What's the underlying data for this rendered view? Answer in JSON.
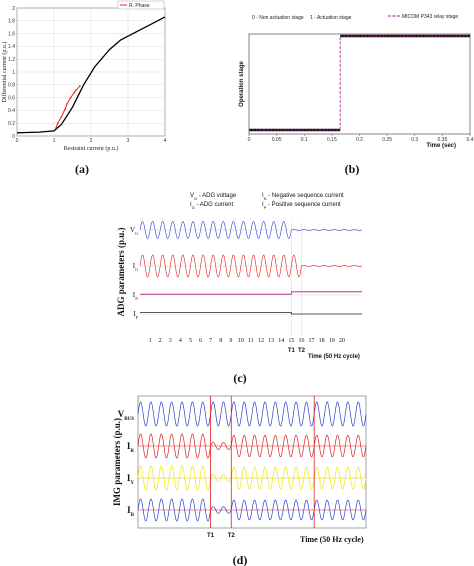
{
  "chart_data": [
    {
      "id": "a",
      "caption": "(a)",
      "type": "line",
      "xlabel": "Restraint current (p.u.)",
      "ylabel": "Differential current (p.u.)",
      "x_ticks": [
        "0",
        "1",
        "2",
        "3",
        "4"
      ],
      "y_ticks": [
        "0",
        "0.2",
        "0.4",
        "0.6",
        "0.8",
        "1",
        "1.2",
        "1.4",
        "1.6",
        "1.8",
        "2"
      ],
      "xlim": [
        0,
        4
      ],
      "ylim": [
        0,
        2.0
      ],
      "grid": true,
      "legend_position": "top-right",
      "legend_label": "R. Phase",
      "series": [
        {
          "role": "characteristic",
          "color": "#000000",
          "x": [
            0,
            0.6,
            1.0,
            1.2,
            1.5,
            1.8,
            2.1,
            2.5,
            2.8,
            3.2,
            3.6,
            4.0
          ],
          "y": [
            0.05,
            0.06,
            0.08,
            0.18,
            0.45,
            0.8,
            1.08,
            1.35,
            1.5,
            1.62,
            1.74,
            1.86
          ]
        },
        {
          "name": "R. Phase",
          "color": "#e8231c",
          "x": [
            1.05,
            1.1,
            1.2,
            1.3,
            1.35,
            1.45,
            1.55,
            1.6,
            1.7
          ],
          "y": [
            0.12,
            0.2,
            0.3,
            0.42,
            0.5,
            0.6,
            0.68,
            0.72,
            0.78
          ]
        }
      ]
    },
    {
      "id": "b",
      "caption": "(b)",
      "type": "line",
      "xlabel": "Time (sec)",
      "ylabel": "Operation stage",
      "x_ticks": [
        "0",
        "0.05",
        "0.1",
        "0.15",
        "0.2",
        "0.25",
        "0.3",
        "0.35",
        "0.4"
      ],
      "xlim": [
        0,
        0.4
      ],
      "ylim": [
        0,
        1
      ],
      "annotations": [
        "0 - Non actuation stage",
        "1 - Actuation stage"
      ],
      "legend_label": "MICOM P343 relay stage",
      "legend_position": "top-right",
      "series": [
        {
          "name": "MICOM P343 relay stage",
          "color": "#b0158f",
          "x": [
            0,
            0.165,
            0.165,
            0.4
          ],
          "y": [
            0,
            0,
            1,
            1
          ]
        }
      ]
    },
    {
      "id": "c",
      "caption": "(c)",
      "type": "line",
      "ylabel": "ADG parameters (p.u.)",
      "xlabel": "Time (50 Hz cycle)",
      "x_ticks": [
        "1",
        "2",
        "3",
        "4",
        "5",
        "6",
        "7",
        "8",
        "9",
        "10",
        "11",
        "12",
        "13",
        "14",
        "15",
        "16",
        "17",
        "18",
        "19",
        "20"
      ],
      "xlim": [
        0,
        22
      ],
      "markers": [
        "T1",
        "T2"
      ],
      "marker_x": [
        15,
        16
      ],
      "legend_lines": [
        {
          "sym": "V",
          "sub": "G",
          "desc": "- ADG voltage"
        },
        {
          "sym": "I",
          "sub": "N",
          "desc": "- Negative sequence current"
        },
        {
          "sym": "I",
          "sub": "G",
          "desc": "- ADG current"
        },
        {
          "sym": "I",
          "sub": "P",
          "desc": "- Positive sequence current"
        }
      ],
      "series": [
        {
          "name": "VG",
          "sym": "V",
          "sub": "G",
          "color": "#2f3fd0",
          "pre_amplitude": 1.0,
          "post_amplitude": 0.04,
          "collapse_cycle": 15
        },
        {
          "name": "IG",
          "sym": "I",
          "sub": "G",
          "color": "#e02020",
          "pre_amplitude": 1.0,
          "post_amplitude": 0.05,
          "collapse_cycle": 16
        },
        {
          "name": "IN",
          "sym": "I",
          "sub": "N",
          "color": "#b0158f",
          "pre_level": 0.1,
          "post_level": 0.4,
          "change_cycle": 15
        },
        {
          "name": "IP",
          "sym": "I",
          "sub": "P",
          "color": "#222222",
          "pre_level": 0.2,
          "post_level": 0.0,
          "change_cycle": 15
        }
      ]
    },
    {
      "id": "d",
      "caption": "(d)",
      "type": "line",
      "ylabel": "IMG parameters (p.u.)",
      "xlabel": "Time (50 Hz cycle)",
      "markers": [
        "T1",
        "T2"
      ],
      "marker_x": [
        7,
        9
      ],
      "cycles": 22,
      "series": [
        {
          "name": "VBUS",
          "sym": "V",
          "sub": "BUS",
          "color": "#2f3fd0",
          "pre_amplitude": 1.0,
          "post_amplitude": 1.0
        },
        {
          "name": "IR",
          "sym": "I",
          "sub": "R",
          "color": "#e02020",
          "pre_amplitude": 1.0,
          "post_amplitude": 0.3
        },
        {
          "name": "IY",
          "sym": "I",
          "sub": "Y",
          "color": "#f2e600",
          "pre_amplitude": 1.0,
          "post_amplitude": 0.3
        },
        {
          "name": "IB",
          "sym": "I",
          "sub": "B",
          "color": "#2f3fd0",
          "pre_amplitude": 1.0,
          "post_amplitude": 0.3
        }
      ]
    }
  ]
}
